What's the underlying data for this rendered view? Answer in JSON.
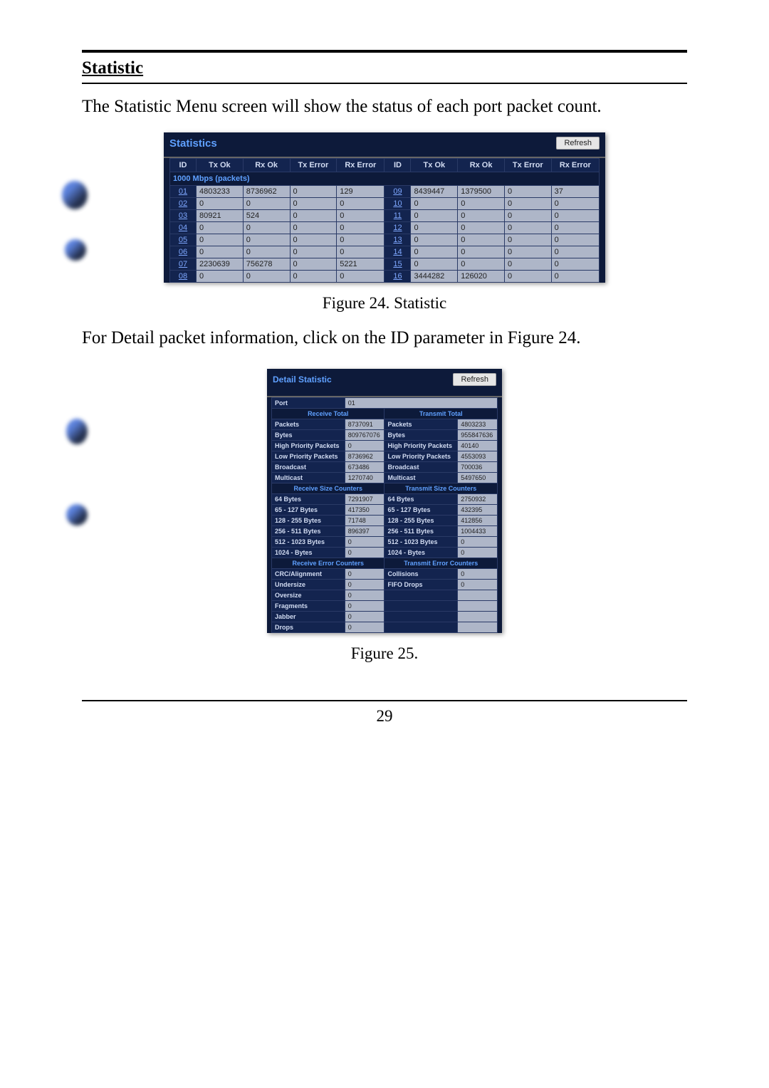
{
  "section_title": "Statistic",
  "body_text": "The Statistic Menu screen will show the status of each port packet count.",
  "fig24_caption": "Figure 24. Statistic",
  "after_fig24_text": "For Detail packet information, click on the ID parameter in Figure 24.",
  "fig25_caption": "Figure 25.",
  "page_number": "29",
  "statistics_panel": {
    "title": "Statistics",
    "refresh_label": "Refresh",
    "columns": [
      "ID",
      "Tx Ok",
      "Rx Ok",
      "Tx Error",
      "Rx Error",
      "ID",
      "Tx Ok",
      "Rx Ok",
      "Tx Error",
      "Rx Error"
    ],
    "subhead": "1000 Mbps (packets)",
    "rows": [
      [
        "01",
        "4803233",
        "8736962",
        "0",
        "129",
        "09",
        "8439447",
        "1379500",
        "0",
        "37"
      ],
      [
        "02",
        "0",
        "0",
        "0",
        "0",
        "10",
        "0",
        "0",
        "0",
        "0"
      ],
      [
        "03",
        "80921",
        "524",
        "0",
        "0",
        "11",
        "0",
        "0",
        "0",
        "0"
      ],
      [
        "04",
        "0",
        "0",
        "0",
        "0",
        "12",
        "0",
        "0",
        "0",
        "0"
      ],
      [
        "05",
        "0",
        "0",
        "0",
        "0",
        "13",
        "0",
        "0",
        "0",
        "0"
      ],
      [
        "06",
        "0",
        "0",
        "0",
        "0",
        "14",
        "0",
        "0",
        "0",
        "0"
      ],
      [
        "07",
        "2230639",
        "756278",
        "0",
        "5221",
        "15",
        "0",
        "0",
        "0",
        "0"
      ],
      [
        "08",
        "0",
        "0",
        "0",
        "0",
        "16",
        "3444282",
        "126020",
        "0",
        "0"
      ]
    ]
  },
  "detail_panel": {
    "title": "Detail Statistic",
    "refresh_label": "Refresh",
    "port_label": "Port",
    "port_value": "01",
    "sections": {
      "receive_total": "Receive Total",
      "transmit_total": "Transmit Total",
      "receive_size": "Receive Size Counters",
      "transmit_size": "Transmit Size Counters",
      "receive_err": "Receive Error Counters",
      "transmit_err": "Transmit Error Counters"
    },
    "totals": [
      [
        "Packets",
        "8737091",
        "Packets",
        "4803233"
      ],
      [
        "Bytes",
        "809767076",
        "Bytes",
        "955847636"
      ],
      [
        "High Priority Packets",
        "0",
        "High Priority Packets",
        "40140"
      ],
      [
        "Low Priority Packets",
        "8736962",
        "Low Priority Packets",
        "4553093"
      ],
      [
        "Broadcast",
        "673486",
        "Broadcast",
        "700036"
      ],
      [
        "Multicast",
        "1270740",
        "Multicast",
        "5497650"
      ]
    ],
    "sizes": [
      [
        "64 Bytes",
        "7291907",
        "64 Bytes",
        "2750932"
      ],
      [
        "65 - 127 Bytes",
        "417350",
        "65 - 127 Bytes",
        "432395"
      ],
      [
        "128 - 255 Bytes",
        "71748",
        "128 - 255 Bytes",
        "412856"
      ],
      [
        "256 - 511 Bytes",
        "896397",
        "256 - 511 Bytes",
        "1004433"
      ],
      [
        "512 - 1023 Bytes",
        "0",
        "512 - 1023 Bytes",
        "0"
      ],
      [
        "1024 - Bytes",
        "0",
        "1024 - Bytes",
        "0"
      ]
    ],
    "errors": [
      [
        "CRC/Alignment",
        "0",
        "Collisions",
        "0"
      ],
      [
        "Undersize",
        "0",
        "FIFO Drops",
        "0"
      ],
      [
        "Oversize",
        "0",
        "",
        ""
      ],
      [
        "Fragments",
        "0",
        "",
        ""
      ],
      [
        "Jabber",
        "0",
        "",
        ""
      ],
      [
        "Drops",
        "0",
        "",
        ""
      ]
    ]
  }
}
